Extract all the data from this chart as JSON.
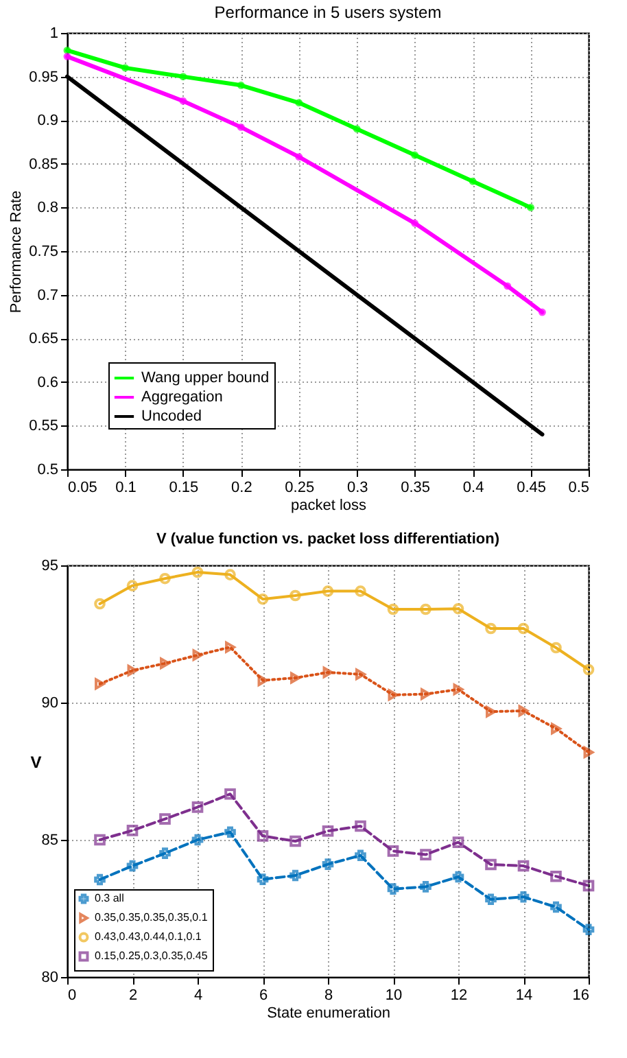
{
  "chart_data": [
    {
      "type": "line",
      "title": "Performance in 5 users system",
      "xlabel": "packet loss",
      "ylabel": "Performance Rate",
      "xlim": [
        0.05,
        0.5
      ],
      "xticks": [
        0.05,
        0.1,
        0.15,
        0.2,
        0.25,
        0.3,
        0.35,
        0.4,
        0.45,
        0.5
      ],
      "ylim": [
        0.5,
        1
      ],
      "yticks": [
        0.5,
        0.55,
        0.6,
        0.65,
        0.7,
        0.75,
        0.8,
        0.85,
        0.9,
        0.95,
        1
      ],
      "grid": true,
      "legend": "bottom left",
      "series": [
        {
          "name": "Wang upper bound",
          "color": "#00ff00",
          "marker": "circle",
          "line_style": "solid",
          "x": [
            0.05,
            0.1,
            0.15,
            0.2,
            0.25,
            0.3,
            0.35,
            0.4,
            0.45
          ],
          "values": [
            0.98,
            0.96,
            0.95,
            0.94,
            0.92,
            0.89,
            0.86,
            0.83,
            0.8
          ]
        },
        {
          "name": "Aggregation",
          "color": "#ff00ff",
          "marker": "circle",
          "line_style": "solid",
          "x": [
            0.05,
            0.15,
            0.2,
            0.25,
            0.35,
            0.43,
            0.46
          ],
          "values": [
            0.973,
            0.922,
            0.892,
            0.858,
            0.782,
            0.71,
            0.68
          ]
        },
        {
          "name": "Uncoded",
          "color": "#000000",
          "line_style": "solid",
          "x": [
            0.05,
            0.46
          ],
          "values": [
            0.95,
            0.54
          ]
        }
      ]
    },
    {
      "type": "line",
      "title": "V (value function vs. packet loss differentiation)",
      "xlabel": "State enumeration",
      "ylabel": "V",
      "xlim": [
        0,
        16
      ],
      "xticks": [
        0,
        2,
        4,
        6,
        8,
        10,
        12,
        14,
        16
      ],
      "ylim": [
        80,
        95
      ],
      "yticks": [
        80,
        85,
        90,
        95
      ],
      "grid": true,
      "legend": "bottom left",
      "x": [
        1,
        2,
        3,
        4,
        5,
        6,
        7,
        8,
        9,
        10,
        11,
        12,
        13,
        14,
        15,
        16
      ],
      "series": [
        {
          "name": "0.3 all",
          "color": "#0072bd",
          "marker": "cross",
          "line_style": "dashed",
          "values": [
            83.55,
            84.05,
            84.51,
            85.0,
            85.28,
            83.56,
            83.7,
            84.11,
            84.43,
            83.21,
            83.29,
            83.65,
            82.83,
            82.92,
            82.55,
            81.73
          ]
        },
        {
          "name": "0.35,0.35,0.35,0.35,0.1",
          "color": "#d95319",
          "marker": "triangle",
          "line_style": "dotted",
          "values": [
            90.68,
            91.17,
            91.43,
            91.73,
            92.02,
            90.81,
            90.9,
            91.1,
            91.03,
            90.28,
            90.31,
            90.48,
            89.67,
            89.7,
            89.05,
            88.19
          ]
        },
        {
          "name": "0.43,0.43,0.44,0.1,0.1",
          "color": "#edb120",
          "marker": "circle",
          "line_style": "solid",
          "values": [
            93.6,
            94.26,
            94.52,
            94.75,
            94.66,
            93.77,
            93.9,
            94.06,
            94.06,
            93.4,
            93.4,
            93.42,
            92.7,
            92.7,
            92.0,
            91.2
          ]
        },
        {
          "name": "0.15,0.25,0.3,0.35,0.45",
          "color": "#7e2f8e",
          "marker": "square",
          "line_style": "dashed",
          "values": [
            85.0,
            85.34,
            85.76,
            86.19,
            86.67,
            85.14,
            84.95,
            85.32,
            85.5,
            84.59,
            84.46,
            84.91,
            84.1,
            84.05,
            83.67,
            83.33
          ]
        }
      ]
    }
  ]
}
